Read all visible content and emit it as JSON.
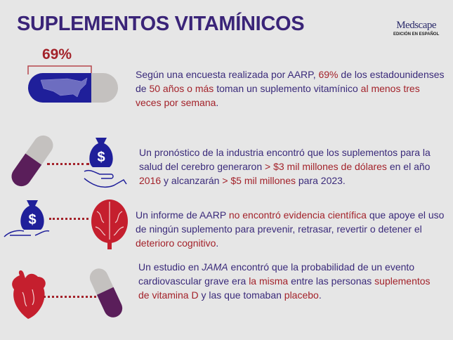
{
  "title": "SUPLEMENTOS VITAMÍNICOS",
  "logo": {
    "brand": "Medscape",
    "subtitle": "EDICIÓN EN ESPAÑOL"
  },
  "colors": {
    "purple_text": "#3a2a7a",
    "highlight_red": "#a3222a",
    "pill_blue": "#1f1f9a",
    "pill_purple": "#5a1e5a",
    "pill_gray": "#c2bfbd",
    "background": "#e6e6e6"
  },
  "stat1": {
    "percent_label": "69%",
    "percent_value": 69,
    "segments": [
      {
        "text": "Según una encuesta realizada por AARP, ",
        "hl": false
      },
      {
        "text": "69%",
        "hl": true
      },
      {
        "text": " de los estadounidenses de ",
        "hl": false
      },
      {
        "text": "50 años o más",
        "hl": true
      },
      {
        "text": " toman un suplemento vitamínico ",
        "hl": false
      },
      {
        "text": "al menos tres veces por semana",
        "hl": true
      },
      {
        "text": ".",
        "hl": false
      }
    ]
  },
  "stat2": {
    "segments": [
      {
        "text": "Un pronóstico de la industria encontró que los suplementos para la salud del cerebro generaron ",
        "hl": false
      },
      {
        "text": "> $3 mil millones de dólares",
        "hl": true
      },
      {
        "text": " en el año ",
        "hl": false
      },
      {
        "text": "2016",
        "hl": true
      },
      {
        "text": " y alcanzarán ",
        "hl": false
      },
      {
        "text": "> $5 mil millones",
        "hl": true
      },
      {
        "text": " para 2023.",
        "hl": false
      }
    ]
  },
  "stat3": {
    "segments": [
      {
        "text": "Un informe de AARP ",
        "hl": false
      },
      {
        "text": "no encontró evidencia científica",
        "hl": true
      },
      {
        "text": " que apoye el uso de ningún suplemento para prevenir, retrasar, revertir o detener el ",
        "hl": false
      },
      {
        "text": "deterioro cognitivo",
        "hl": true
      },
      {
        "text": ".",
        "hl": false
      }
    ]
  },
  "stat4": {
    "segments": [
      {
        "text": "Un estudio en ",
        "hl": false
      },
      {
        "text": "JAMA",
        "hl": false,
        "italic": true
      },
      {
        "text": " encontró que la probabilidad de un evento cardiovascular grave era ",
        "hl": false
      },
      {
        "text": "la misma",
        "hl": true
      },
      {
        "text": " entre las personas ",
        "hl": false
      },
      {
        "text": "suplementos de vitamina D",
        "hl": true
      },
      {
        "text": " y las que tomaban ",
        "hl": false
      },
      {
        "text": "placebo",
        "hl": true
      },
      {
        "text": ".",
        "hl": false
      }
    ]
  },
  "icons": [
    "pill-us-map-icon",
    "pill-icon",
    "money-bag-hand-icon",
    "brain-icon",
    "heart-icon"
  ]
}
